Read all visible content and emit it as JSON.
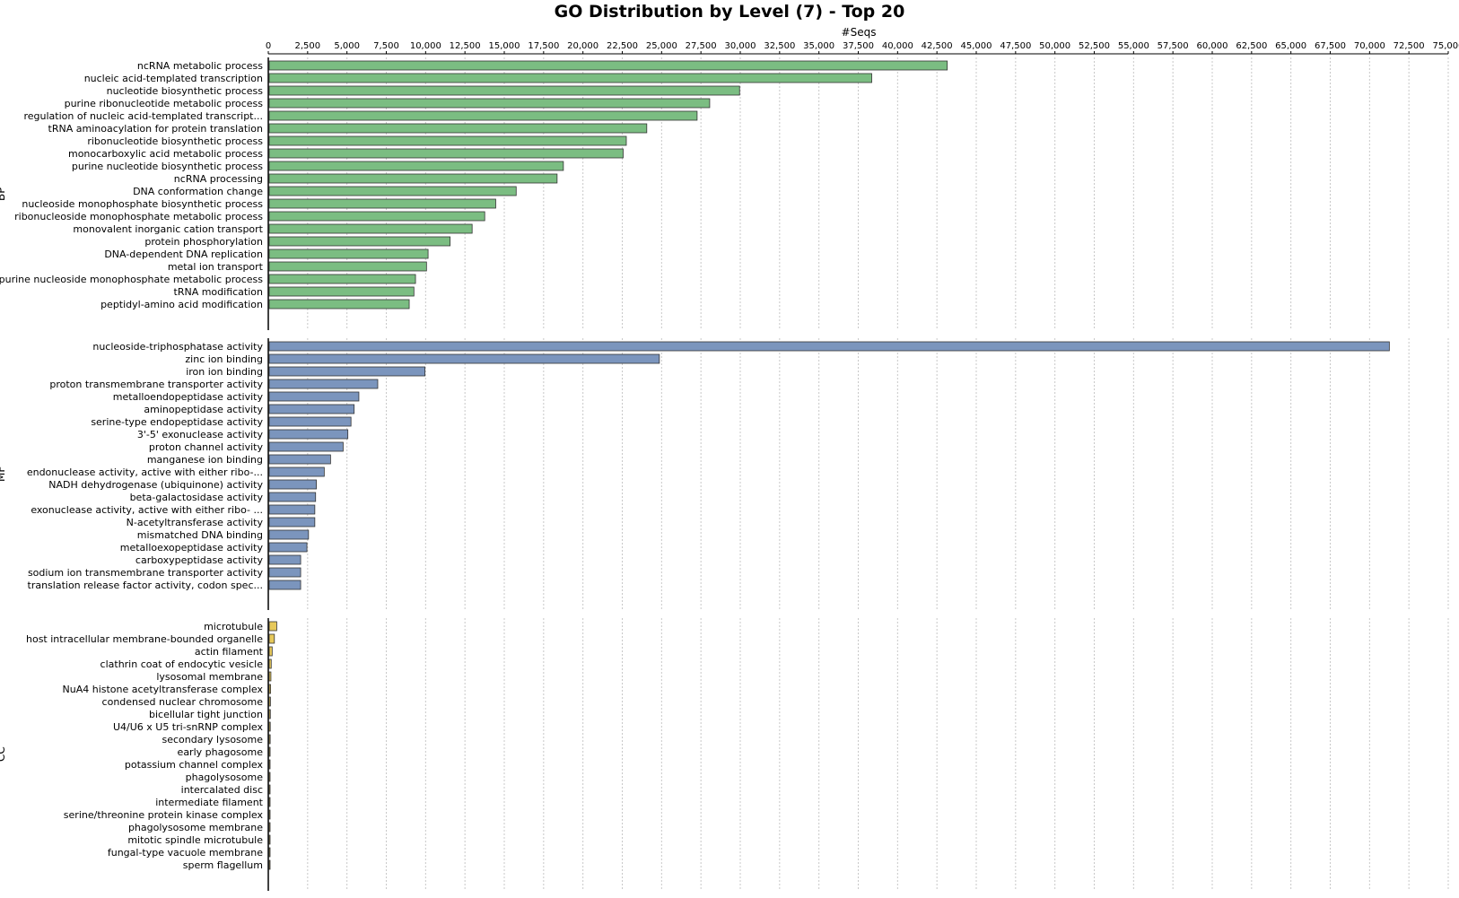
{
  "chart_data": {
    "type": "bar",
    "orientation": "horizontal",
    "title": "GO Distribution by Level (7) - Top 20",
    "xlabel": "#Seqs",
    "xlim": [
      0,
      75000
    ],
    "x_tick_step": 2500,
    "grid": true,
    "panels": [
      {
        "name": "BP",
        "color": "#7bbd82",
        "categories": [
          "ncRNA metabolic process",
          "nucleic acid-templated transcription",
          "nucleotide biosynthetic process",
          "purine ribonucleotide metabolic process",
          "regulation of nucleic acid-templated transcript...",
          "tRNA aminoacylation for protein translation",
          "ribonucleotide biosynthetic process",
          "monocarboxylic acid metabolic process",
          "purine nucleotide biosynthetic process",
          "ncRNA processing",
          "DNA conformation change",
          "nucleoside monophosphate biosynthetic process",
          "ribonucleoside monophosphate metabolic process",
          "monovalent inorganic cation transport",
          "protein phosphorylation",
          "DNA-dependent DNA replication",
          "metal ion transport",
          "purine nucleoside monophosphate metabolic process",
          "tRNA modification",
          "peptidyl-amino acid modification"
        ],
        "values": [
          43100,
          38300,
          29900,
          28000,
          27200,
          24000,
          22700,
          22500,
          18700,
          18300,
          15700,
          14400,
          13700,
          12900,
          11500,
          10100,
          10000,
          9300,
          9200,
          8900
        ]
      },
      {
        "name": "MF",
        "color": "#7b95bd",
        "categories": [
          "nucleoside-triphosphatase activity",
          "zinc ion binding",
          "iron ion binding",
          "proton transmembrane transporter activity",
          "metalloendopeptidase activity",
          "aminopeptidase activity",
          "serine-type endopeptidase activity",
          "3'-5' exonuclease activity",
          "proton channel activity",
          "manganese ion binding",
          "endonuclease activity, active with either ribo-...",
          "NADH dehydrogenase (ubiquinone) activity",
          "beta-galactosidase activity",
          "exonuclease activity, active with either ribo- ...",
          "N-acetyltransferase activity",
          "mismatched DNA binding",
          "metalloexopeptidase activity",
          "carboxypeptidase activity",
          "sodium ion transmembrane transporter activity",
          "translation release factor activity, codon spec..."
        ],
        "values": [
          71200,
          24800,
          9900,
          6900,
          5700,
          5400,
          5200,
          5000,
          4700,
          3900,
          3500,
          3000,
          2950,
          2900,
          2900,
          2500,
          2400,
          2000,
          2000,
          2000
        ]
      },
      {
        "name": "CC",
        "color": "#e6c85a",
        "categories": [
          "microtubule",
          "host intracellular membrane-bounded organelle",
          "actin filament",
          "clathrin coat of endocytic vesicle",
          "lysosomal membrane",
          "NuA4 histone acetyltransferase complex",
          "condensed nuclear chromosome",
          "bicellular tight junction",
          "U4/U6 x U5 tri-snRNP complex",
          "secondary lysosome",
          "early phagosome",
          "potassium channel complex",
          "phagolysosome",
          "intercalated disc",
          "intermediate filament",
          "serine/threonine protein kinase complex",
          "phagolysosome membrane",
          "mitotic spindle microtubule",
          "fungal-type vacuole membrane",
          "sperm flagellum"
        ],
        "values": [
          480,
          330,
          190,
          130,
          110,
          90,
          80,
          75,
          70,
          65,
          60,
          55,
          50,
          45,
          40,
          40,
          35,
          35,
          30,
          30
        ]
      }
    ]
  }
}
